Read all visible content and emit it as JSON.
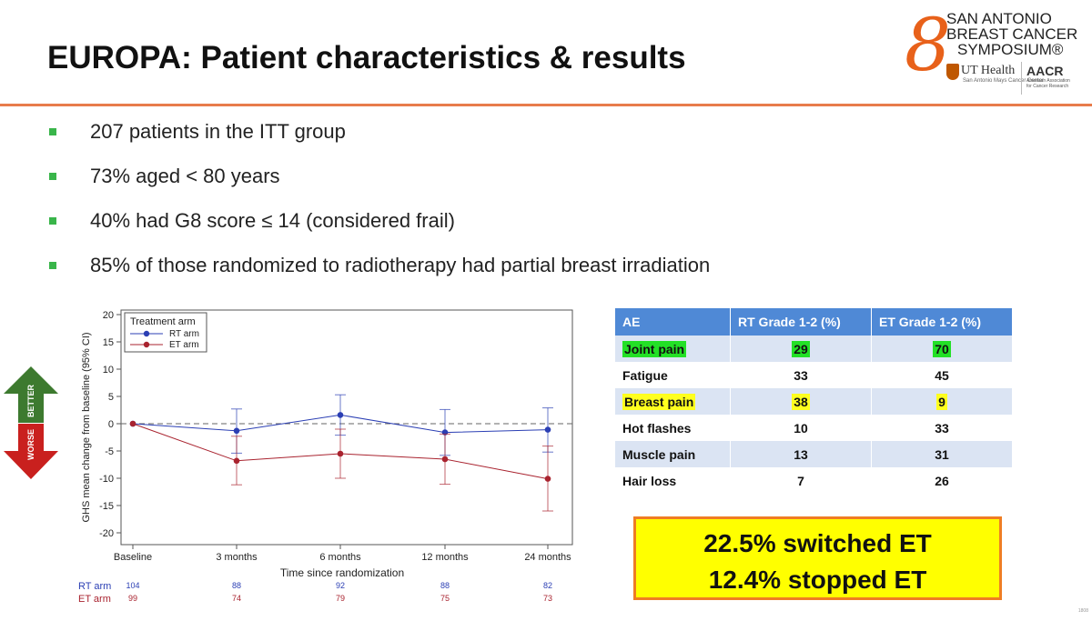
{
  "slide": {
    "title": "EUROPA: Patient characteristics & results",
    "corner_number": "1808"
  },
  "logo": {
    "line1": "SAN ANTONIO",
    "line2": "BREAST CANCER",
    "line3": "SYMPOSIUM®",
    "ut": "UT Health",
    "ut_sub": "San Antonio Mays Cancer Center",
    "aacr": "AACR",
    "aacr_sub": "American Association for Cancer Research"
  },
  "bullets": [
    "207 patients in the ITT group",
    "73% aged < 80 years",
    "40% had G8 score  ≤ 14 (considered frail)",
    "85% of those randomized to radiotherapy had partial breast irradiation"
  ],
  "arrows": {
    "better": "BETTER",
    "worse": "WORSE"
  },
  "chart_data": {
    "type": "line",
    "title": "",
    "xlabel": "Time since randomization",
    "ylabel": "GHS mean change from baseline (95% CI)",
    "categories": [
      "Baseline",
      "3 months",
      "6 months",
      "12 months",
      "24 months"
    ],
    "ylim": [
      -20,
      20
    ],
    "yticks": [
      20,
      15,
      10,
      5,
      0,
      -5,
      -10,
      -15,
      -20
    ],
    "reference_line": 0,
    "legend_title": "Treatment arm",
    "legend_position": "top-left",
    "series": [
      {
        "name": "RT arm",
        "color": "#2b3fb4",
        "values": [
          0,
          -1.3,
          1.6,
          -1.6,
          -1.1
        ],
        "ci_low": [
          0,
          -5.4,
          -2.1,
          -5.8,
          -5.2
        ],
        "ci_high": [
          0,
          2.7,
          5.3,
          2.6,
          2.9
        ],
        "n_at_risk": [
          "104",
          "88",
          "92",
          "88",
          "82"
        ]
      },
      {
        "name": "ET arm",
        "color": "#a9232f",
        "values": [
          0,
          -6.8,
          -5.5,
          -6.5,
          -10.1
        ],
        "ci_low": [
          0,
          -11.2,
          -10.0,
          -11.1,
          -16.0
        ],
        "ci_high": [
          0,
          -2.3,
          -1.0,
          -1.9,
          -4.1
        ],
        "n_at_risk": [
          "99",
          "74",
          "79",
          "75",
          "73"
        ]
      }
    ]
  },
  "table": {
    "headers": [
      "AE",
      "RT Grade 1-2 (%)",
      "ET Grade 1-2 (%)"
    ],
    "rows": [
      {
        "ae": "Joint pain",
        "rt": "29",
        "et": "70"
      },
      {
        "ae": "Fatigue",
        "rt": "33",
        "et": "45"
      },
      {
        "ae": "Breast pain",
        "rt": "38",
        "et": "9"
      },
      {
        "ae": "Hot flashes",
        "rt": "10",
        "et": "33"
      },
      {
        "ae": "Muscle pain",
        "rt": "13",
        "et": "31"
      },
      {
        "ae": "Hair loss",
        "rt": "7",
        "et": "26"
      }
    ]
  },
  "callout": {
    "line1": "22.5% switched ET",
    "line2": "12.4% stopped ET"
  },
  "colors": {
    "accent_rule": "#e87c4b",
    "bullet": "#39b54a",
    "table_header": "#4f89d6",
    "table_band": "#dbe4f3",
    "highlight_green": "#23e026",
    "highlight_yellow": "#ffff1e",
    "callout_fill": "#ffff00",
    "callout_border": "#ef7d23",
    "better_arrow": "#3d7a2f",
    "worse_arrow": "#c9201e"
  }
}
